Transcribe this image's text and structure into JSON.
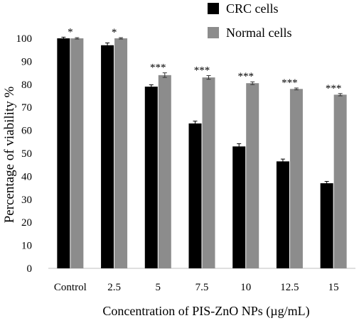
{
  "chart_data": {
    "type": "bar",
    "title": "",
    "xlabel": "Concentration of PIS-ZnO NPs (µg/mL)",
    "ylabel": "Percentage of viability %",
    "ylim": [
      0,
      100
    ],
    "yticks": [
      0,
      10,
      20,
      30,
      40,
      50,
      60,
      70,
      80,
      90,
      100
    ],
    "grid": false,
    "legend_position": "top-right",
    "categories": [
      "Control",
      "2.5",
      "5",
      "7.5",
      "10",
      "12.5",
      "15"
    ],
    "series": [
      {
        "name": "CRC cells",
        "color": "#000000",
        "values": [
          100,
          97,
          79,
          63,
          53,
          46.5,
          37
        ],
        "errors": [
          0.5,
          1,
          0.8,
          1,
          1.2,
          1,
          0.8
        ]
      },
      {
        "name": "Normal cells",
        "color": "#8c8c8c",
        "values": [
          100,
          100,
          84,
          83,
          80.5,
          78,
          75.5
        ],
        "errors": [
          0.3,
          0.3,
          1,
          0.8,
          0.6,
          0.4,
          0.5
        ]
      }
    ],
    "annotations": [
      "*",
      "*",
      "***",
      "***",
      "***",
      "***",
      "***"
    ]
  }
}
